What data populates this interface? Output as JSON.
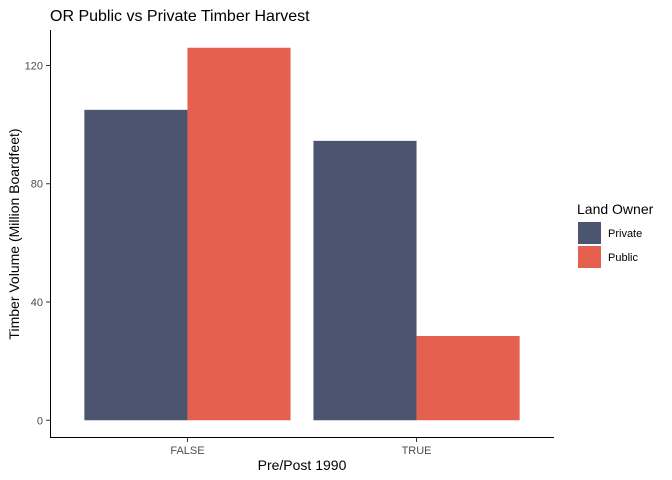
{
  "chart_data": {
    "type": "bar",
    "title": "OR Public vs Private Timber Harvest",
    "xlabel": "Pre/Post 1990",
    "ylabel": "Timber Volume (Million Boardfeet)",
    "categories": [
      "FALSE",
      "TRUE"
    ],
    "series": [
      {
        "name": "Private",
        "color": "#4b556f",
        "values": [
          105,
          94.5
        ]
      },
      {
        "name": "Public",
        "color": "#e66050",
        "values": [
          126,
          28.5
        ]
      }
    ],
    "yticks": [
      0,
      40,
      80,
      120
    ],
    "ylim": [
      -6,
      132
    ],
    "grid": false,
    "legend": {
      "title": "Land Owner",
      "position": "right"
    }
  }
}
